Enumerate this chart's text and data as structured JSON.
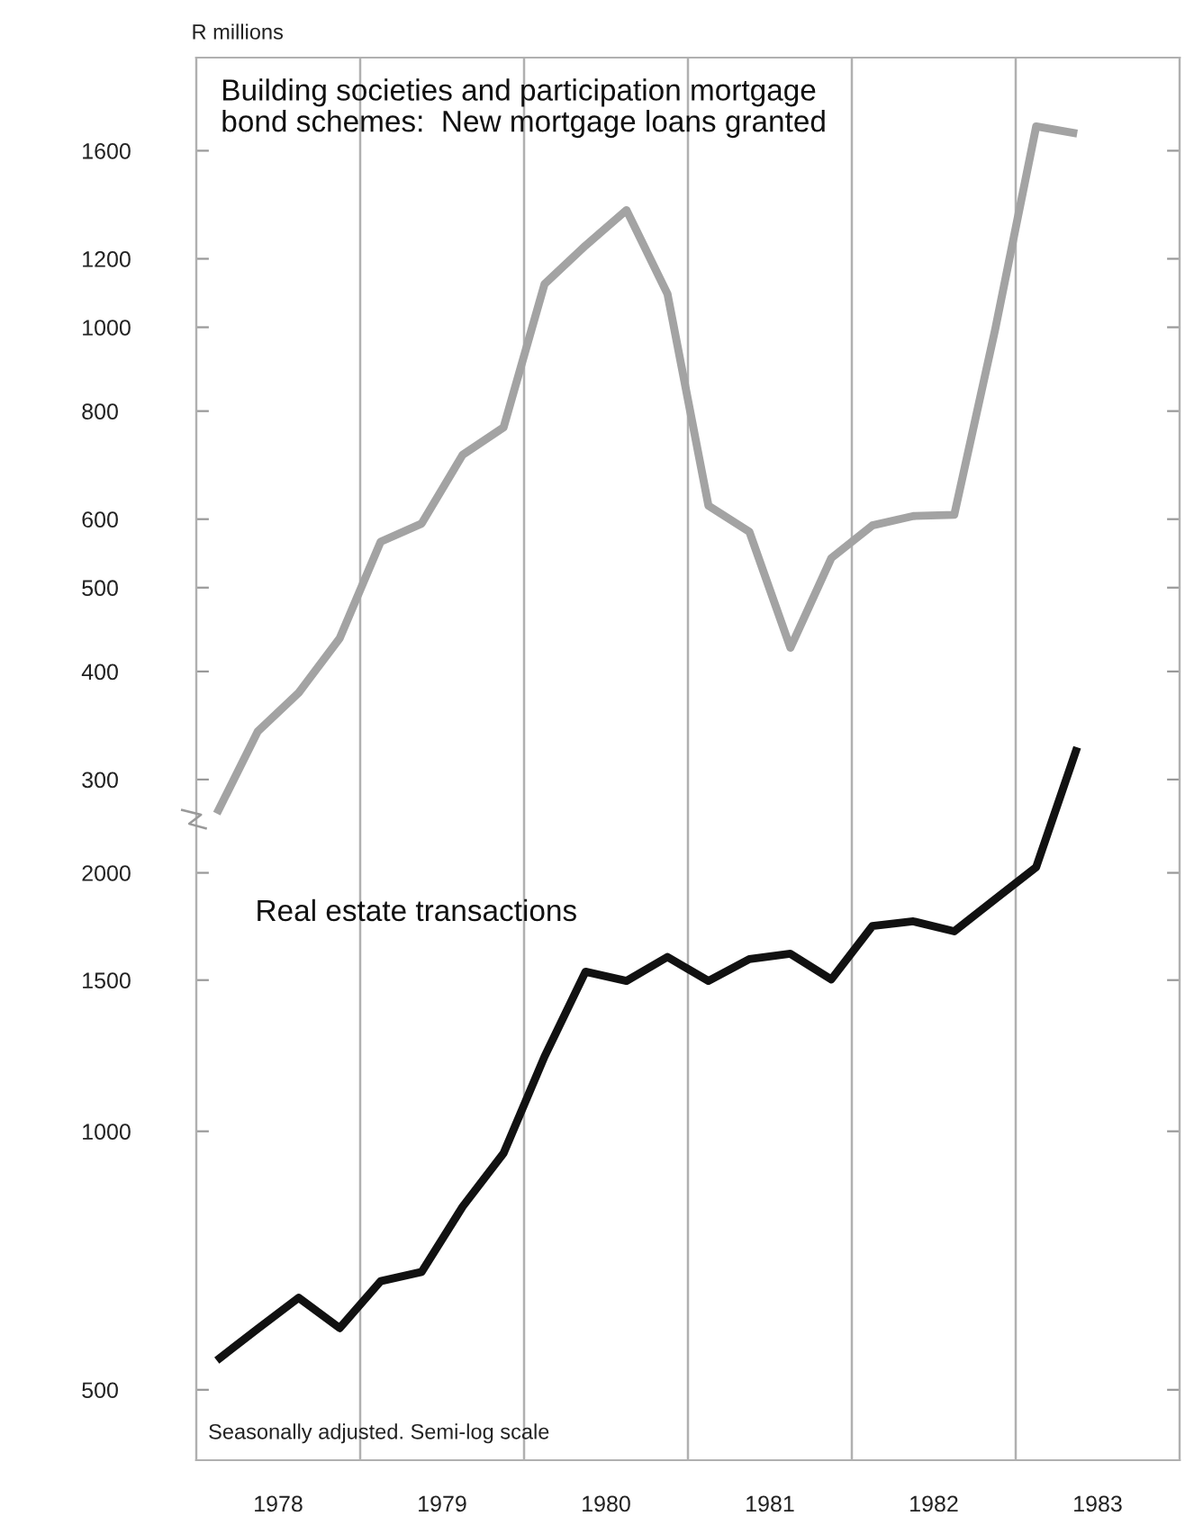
{
  "chart_data": [
    {
      "type": "line",
      "ylabel": "R millions",
      "log": true,
      "ylim": [
        49,
        2050
      ],
      "yticks": [
        300,
        400,
        500,
        600,
        800,
        1000,
        1200,
        1600
      ],
      "xlim": [
        1978,
        1984
      ],
      "tick_labels": "y",
      "x": [
        1978.125,
        1978.375,
        1978.625,
        1978.875,
        1979.125,
        1979.375,
        1979.625,
        1979.875,
        1980.125,
        1980.375,
        1980.625,
        1980.875,
        1981.125,
        1981.375,
        1981.625,
        1981.875,
        1982.125,
        1982.375,
        1982.625,
        1982.875,
        1983.125,
        1983.375
      ],
      "series": [
        {
          "name": "Building societies and participation mortgage\nbond schemes:  New mortgage loans granted",
          "color": "#a3a3a3",
          "values": [
            274,
            341,
            378,
            437,
            565,
            593,
            712,
            766,
            1122,
            1243,
            1366,
            1093,
            622,
            580,
            426,
            541,
            590,
            605,
            607,
            995,
            1707,
            1675
          ]
        }
      ],
      "ref_lines": [
        {
          "axis": "x",
          "value": 1979,
          "color": "#b0b0b0"
        },
        {
          "axis": "x",
          "value": 1980,
          "color": "#b0b0b0"
        },
        {
          "axis": "x",
          "value": 1981,
          "color": "#b0b0b0"
        },
        {
          "axis": "x",
          "value": 1982,
          "color": "#b0b0b0"
        },
        {
          "axis": "x",
          "value": 1983,
          "color": "#b0b0b0"
        }
      ]
    },
    {
      "type": "line",
      "log": true,
      "ylim": [
        414,
        17800
      ],
      "yticks": [
        500,
        1000,
        1500,
        2000
      ],
      "xlim": [
        1978,
        1984
      ],
      "xticks": [
        {
          "value": 1978.5,
          "label": "1978"
        },
        {
          "value": 1979.5,
          "label": "1979"
        },
        {
          "value": 1980.5,
          "label": "1980"
        },
        {
          "value": 1981.5,
          "label": "1981"
        },
        {
          "value": 1982.5,
          "label": "1982"
        },
        {
          "value": 1983.5,
          "label": "1983"
        }
      ],
      "x": [
        1978.125,
        1978.375,
        1978.625,
        1978.875,
        1979.125,
        1979.375,
        1979.625,
        1979.875,
        1980.125,
        1980.375,
        1980.625,
        1980.875,
        1981.125,
        1981.375,
        1981.625,
        1981.875,
        1982.125,
        1982.375,
        1982.625,
        1982.875,
        1983.125,
        1983.375
      ],
      "series": [
        {
          "name": "Real estate transactions",
          "color": "#111111",
          "values": [
            541,
            589,
            640,
            590,
            669,
            686,
            817,
            943,
            1222,
            1534,
            1497,
            1596,
            1497,
            1587,
            1610,
            1503,
            1734,
            1756,
            1710,
            1864,
            2031,
            2800
          ]
        }
      ],
      "annotations": [
        "Seasonally adjusted. Semi-log scale"
      ]
    }
  ]
}
